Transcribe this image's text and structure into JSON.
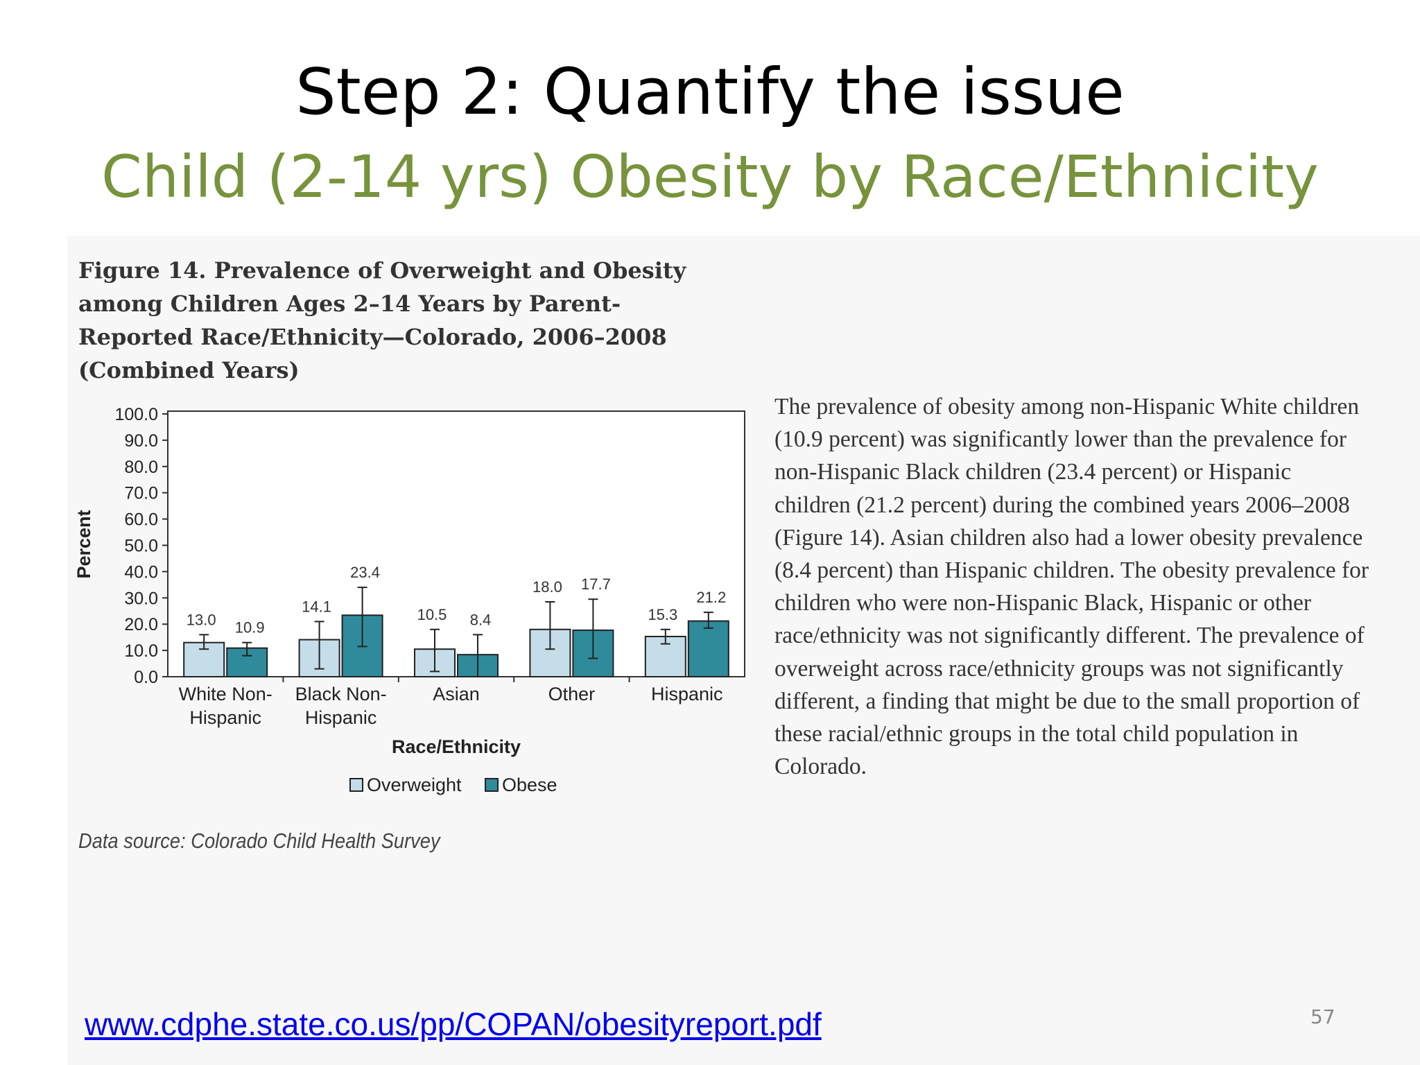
{
  "slide": {
    "title": "Step 2: Quantify the issue",
    "subtitle": "Child (2-14 yrs) Obesity by Race/Ethnicity",
    "figure_caption": "Figure 14. Prevalence of Overweight and Obesity among Children Ages 2–14 Years by Parent-Reported Race/Ethnicity—Colorado, 2006–2008 (Combined Years)",
    "data_source": "Data source: Colorado Child Health Survey",
    "description": "The prevalence of obesity among non-Hispanic White children (10.9 percent) was significantly lower than the prevalence for non-Hispanic Black children (23.4 percent) or Hispanic children (21.2 percent) during the combined years 2006–2008 (Figure 14). Asian children also had a lower obesity prevalence (8.4 percent) than Hispanic children. The obesity prevalence for children who were non-Hispanic Black, Hispanic or other race/ethnicity was not significantly different. The prevalence of overweight across race/ethnicity groups was not significantly different, a finding that might be due to the small proportion of these racial/ethnic groups in the total child population in Colorado.",
    "link": "www.cdphe.state.co.us/pp/COPAN/obesityreport.pdf",
    "page_number": "57"
  },
  "chart_data": {
    "type": "bar",
    "categories": [
      [
        "White Non-",
        "Hispanic"
      ],
      [
        "Black Non-",
        "Hispanic"
      ],
      [
        "Asian"
      ],
      [
        "Other"
      ],
      [
        "Hispanic"
      ]
    ],
    "series": [
      {
        "name": "Overweight",
        "color": "#c5dde8",
        "values": [
          13.0,
          14.1,
          10.5,
          18.0,
          15.3
        ],
        "err_low": [
          10.5,
          3.0,
          2.0,
          10.5,
          12.5
        ],
        "err_high": [
          16.0,
          21.0,
          18.0,
          28.5,
          18.0
        ]
      },
      {
        "name": "Obese",
        "color": "#2f8b9c",
        "values": [
          10.9,
          23.4,
          8.4,
          17.7,
          21.2
        ],
        "err_low": [
          8.0,
          11.5,
          0.0,
          7.0,
          18.5
        ],
        "err_high": [
          13.0,
          34.0,
          16.0,
          29.5,
          24.5
        ]
      }
    ],
    "value_labels": [
      [
        "13.0",
        "14.1",
        "10.5",
        "18.0",
        "15.3"
      ],
      [
        "10.9",
        "23.4",
        "8.4",
        "17.7",
        "21.2"
      ]
    ],
    "yticks": [
      "0.0",
      "10.0",
      "20.0",
      "30.0",
      "40.0",
      "50.0",
      "60.0",
      "70.0",
      "80.0",
      "90.0",
      "100.0"
    ],
    "ylim": [
      0,
      100
    ],
    "xlabel": "Race/Ethnicity",
    "ylabel": "Percent",
    "legend_position": "bottom",
    "grid": false
  }
}
